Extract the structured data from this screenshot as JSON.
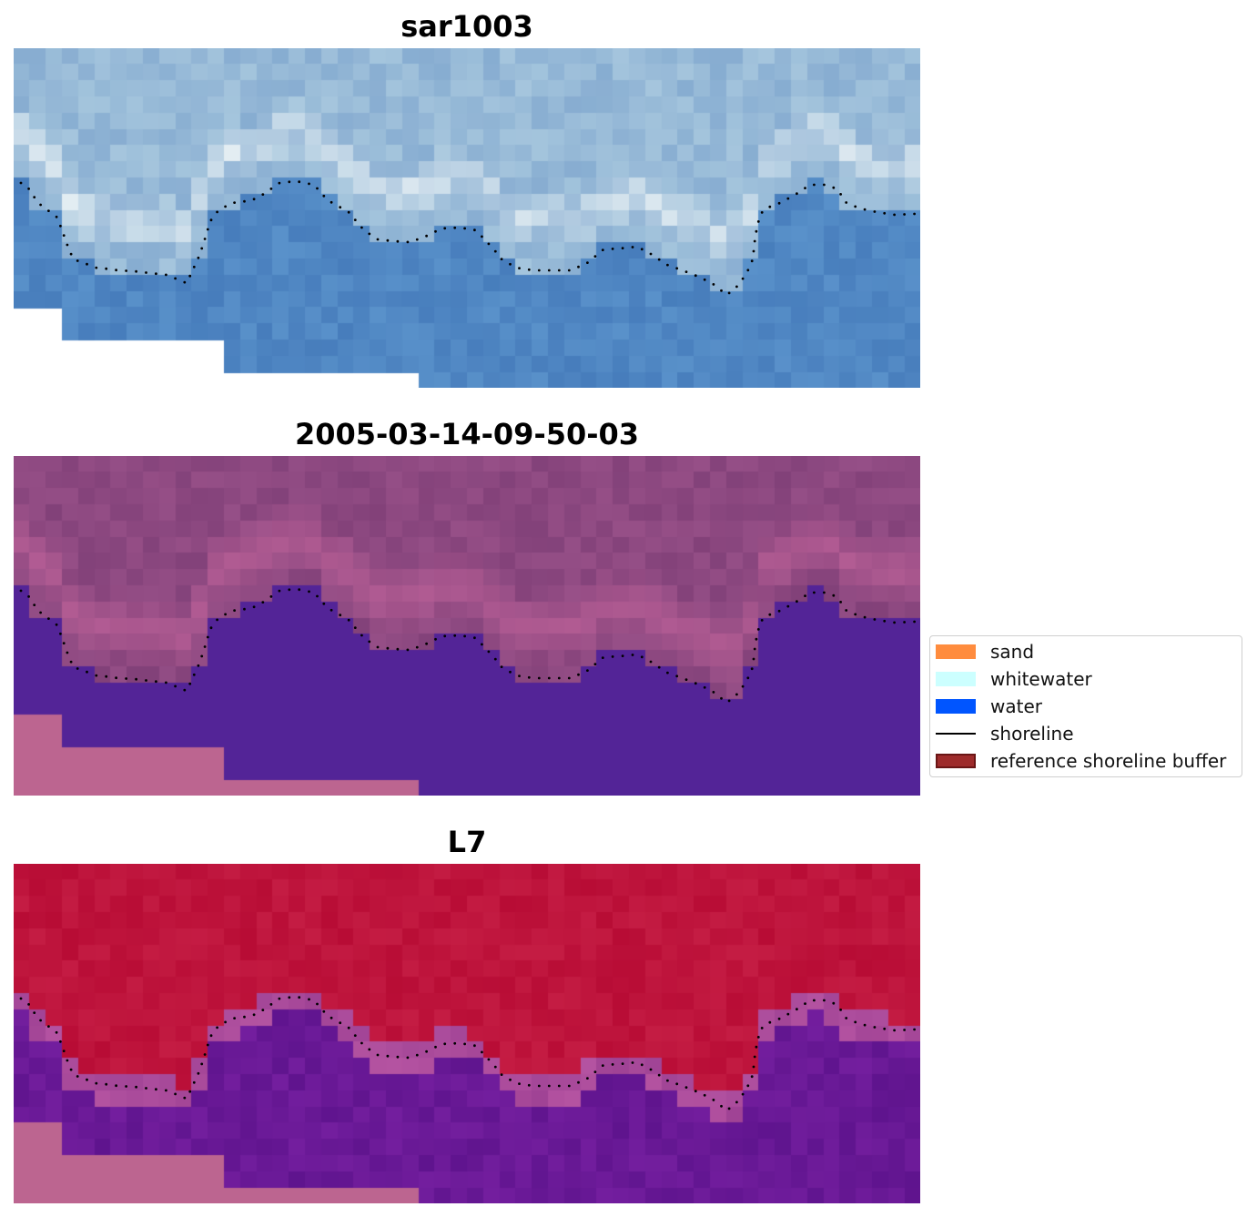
{
  "panels": [
    {
      "title": "sar1003",
      "style": "rgb"
    },
    {
      "title": "2005-03-14-09-50-03",
      "style": "classified"
    },
    {
      "title": "L7",
      "style": "index"
    }
  ],
  "legend": {
    "items": [
      {
        "label": "sand",
        "kind": "patch",
        "color": "#FF8C3E"
      },
      {
        "label": "whitewater",
        "kind": "patch",
        "color": "#CCFFFF"
      },
      {
        "label": "water",
        "kind": "patch",
        "color": "#0055FF"
      },
      {
        "label": "shoreline",
        "kind": "line",
        "color": "#000000"
      },
      {
        "label": "reference shoreline buffer",
        "kind": "patch",
        "color": "#9E2B2B",
        "edge": "#6a1515"
      }
    ]
  },
  "colors": {
    "nodata": "#BC6590",
    "water_class": "#532497",
    "shoreline_dots": "#000000"
  }
}
